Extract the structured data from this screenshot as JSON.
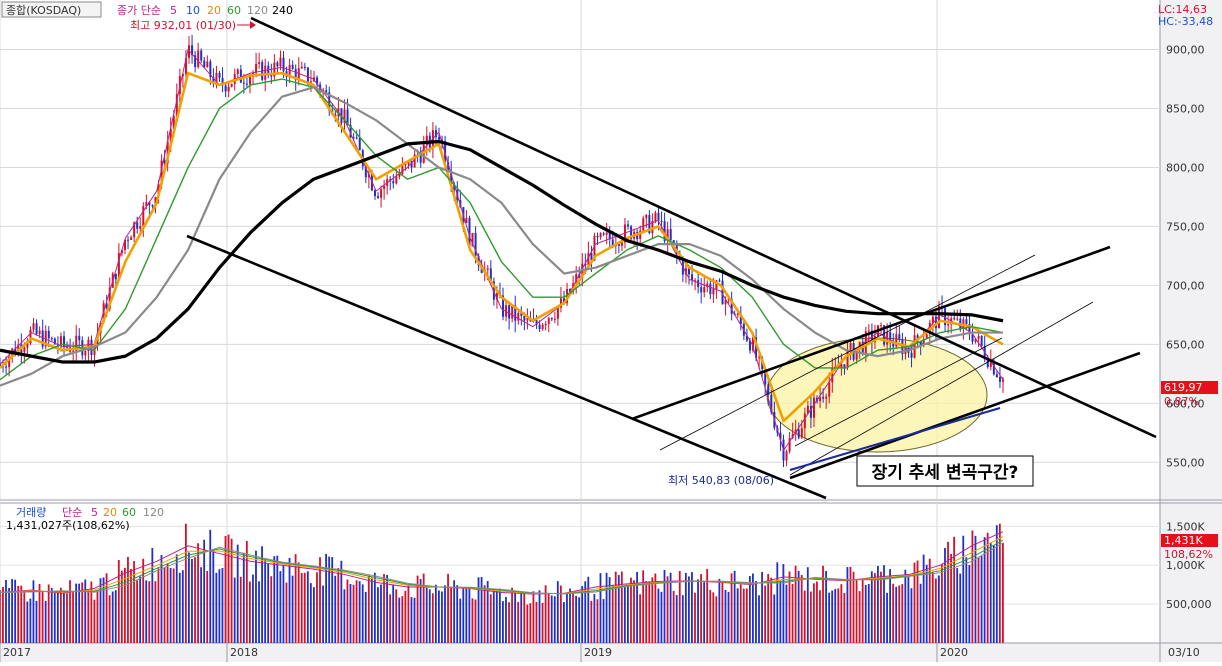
{
  "price_panel": {
    "legend_index": "종합(KOSDAQ)",
    "legend_ma_label": "종가 단순",
    "legend_periods": [
      "5",
      "10",
      "20",
      "60",
      "120",
      "240"
    ],
    "high_note": "최고 932,01 (01/30)",
    "low_note": "최저 540,83 (08/06)",
    "lc_label": "LC:14,63",
    "hc_label": "HC:-33,48",
    "last_price_tag": "619,97",
    "last_change_tag": "0,87%",
    "annotation": "장기 추세 변곡구간?"
  },
  "volume_panel": {
    "legend_label": "거래량",
    "legend_ma_label": "단순",
    "legend_periods": [
      "5",
      "20",
      "60",
      "120"
    ],
    "current_volume": "1,431,027주(108,62%)",
    "last_volume_tag": "1,431K",
    "last_ratio_tag": "108,62%"
  },
  "date_axis": {
    "current_date": "03/10"
  },
  "colors": {
    "ma5": "#c0208a",
    "ma10": "#1a4fd6",
    "ma20": "#f2a000",
    "ma60": "#2e9b2e",
    "ma120": "#8a8a8a",
    "ma240": "#000000",
    "candle_up": "#d2112c",
    "candle_down": "#1f2fc8",
    "price_tag_bg": "#e4101a",
    "ellipse_fill": "#fbf3a4"
  },
  "chart_data": [
    {
      "type": "line",
      "title": "종합(KOSDAQ)",
      "x": [
        "2017-01",
        "2017-04",
        "2017-07",
        "2017-10",
        "2017-11",
        "2017-12",
        "2018-01",
        "2018-02",
        "2018-03",
        "2018-04",
        "2018-05",
        "2018-06",
        "2018-07",
        "2018-08",
        "2018-09",
        "2018-10",
        "2018-11",
        "2018-12",
        "2019-01",
        "2019-02",
        "2019-03",
        "2019-04",
        "2019-05",
        "2019-06",
        "2019-07",
        "2019-08",
        "2019-09",
        "2019-10",
        "2019-11",
        "2019-12",
        "2020-01",
        "2020-02",
        "2020-03"
      ],
      "x_ticks": [
        "2017",
        "2018",
        "2019",
        "2020"
      ],
      "series": [
        {
          "name": "5",
          "values": [
            633,
            660,
            648,
            650,
            740,
            780,
            900,
            870,
            880,
            885,
            875,
            840,
            780,
            800,
            830,
            740,
            680,
            665,
            685,
            735,
            745,
            755,
            705,
            695,
            650,
            560,
            600,
            640,
            660,
            645,
            675,
            660,
            620
          ]
        },
        {
          "name": "20",
          "values": [
            630,
            655,
            645,
            648,
            720,
            770,
            880,
            870,
            878,
            880,
            870,
            830,
            790,
            805,
            820,
            730,
            690,
            670,
            685,
            725,
            740,
            750,
            715,
            700,
            660,
            585,
            610,
            640,
            655,
            648,
            670,
            665,
            650
          ]
        },
        {
          "name": "60",
          "values": [
            620,
            640,
            650,
            645,
            680,
            740,
            800,
            850,
            870,
            875,
            868,
            840,
            810,
            790,
            800,
            770,
            720,
            690,
            690,
            710,
            730,
            742,
            730,
            715,
            690,
            650,
            630,
            630,
            645,
            648,
            660,
            665,
            660
          ]
        },
        {
          "name": "120",
          "values": [
            615,
            625,
            640,
            648,
            660,
            690,
            730,
            790,
            830,
            860,
            868,
            855,
            840,
            820,
            800,
            790,
            770,
            735,
            710,
            715,
            725,
            735,
            735,
            725,
            705,
            680,
            660,
            645,
            640,
            645,
            655,
            660,
            660
          ]
        },
        {
          "name": "240",
          "values": [
            645,
            640,
            635,
            635,
            640,
            655,
            680,
            715,
            745,
            770,
            790,
            800,
            810,
            820,
            822,
            815,
            800,
            785,
            768,
            752,
            738,
            730,
            720,
            712,
            700,
            690,
            683,
            678,
            676,
            676,
            676,
            675,
            670
          ]
        }
      ],
      "annotations": [
        "최고 932,01 (01/30)",
        "최저 540,83 (08/06)",
        "장기 추세 변곡구간?"
      ],
      "ylabel": "",
      "ylim": [
        518,
        942
      ],
      "y_ticks": [
        550,
        600,
        650,
        700,
        750,
        800,
        850,
        900
      ],
      "grid": true,
      "legend": "top-left"
    },
    {
      "type": "bar",
      "title": "거래량",
      "y_ticks": [
        "500,000",
        "1,000K",
        "1,500K"
      ],
      "ylim": [
        0,
        1800
      ],
      "approximate_monthly_volume_k": [
        650,
        680,
        640,
        700,
        900,
        1050,
        1250,
        1150,
        1050,
        1000,
        950,
        880,
        780,
        720,
        720,
        700,
        650,
        630,
        640,
        720,
        760,
        790,
        800,
        780,
        750,
        850,
        820,
        800,
        850,
        880,
        1000,
        1250,
        1431
      ],
      "grid": true
    }
  ]
}
